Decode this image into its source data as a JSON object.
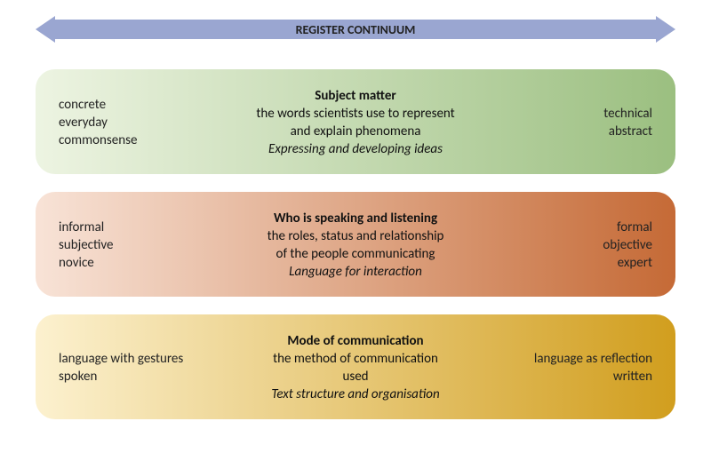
{
  "banner": {
    "title": "REGISTER CONTINUUM",
    "arrow_color": "#9aa6d1",
    "text_color": "#222222",
    "title_fontsize": 14,
    "title_weight": "bold"
  },
  "layout": {
    "panel_border_radius": 22,
    "panel_gap": 20,
    "body_width": 800,
    "body_height": 519,
    "font_family": "Calibri, Arial, sans-serif",
    "body_fontsize": 15
  },
  "panels": [
    {
      "id": "subject-matter",
      "gradient_from": "#edf4e2",
      "gradient_to": "#9bbf80",
      "left_terms": [
        "concrete",
        "everyday",
        "commonsense"
      ],
      "heading": "Subject matter",
      "description_lines": [
        "the words scientists use to represent",
        "and explain phenomena"
      ],
      "italic": "Expressing and developing ideas",
      "right_terms": [
        "technical",
        "abstract"
      ]
    },
    {
      "id": "who-speaking",
      "gradient_from": "#f8e3d7",
      "gradient_to": "#c56a36",
      "left_terms": [
        "informal",
        "subjective",
        "novice"
      ],
      "heading": "Who is speaking and listening",
      "description_lines": [
        "the roles, status and relationship",
        "of the people communicating"
      ],
      "italic": "Language for interaction",
      "right_terms": [
        "formal",
        "objective",
        "expert"
      ]
    },
    {
      "id": "mode-communication",
      "gradient_from": "#fcf1cf",
      "gradient_to": "#d19e1e",
      "left_terms": [
        "language with gestures",
        "spoken"
      ],
      "heading": "Mode of communication",
      "description_lines": [
        "the method of communication",
        "used"
      ],
      "italic": "Text structure and organisation",
      "right_terms": [
        "language as reflection",
        "written"
      ]
    }
  ]
}
